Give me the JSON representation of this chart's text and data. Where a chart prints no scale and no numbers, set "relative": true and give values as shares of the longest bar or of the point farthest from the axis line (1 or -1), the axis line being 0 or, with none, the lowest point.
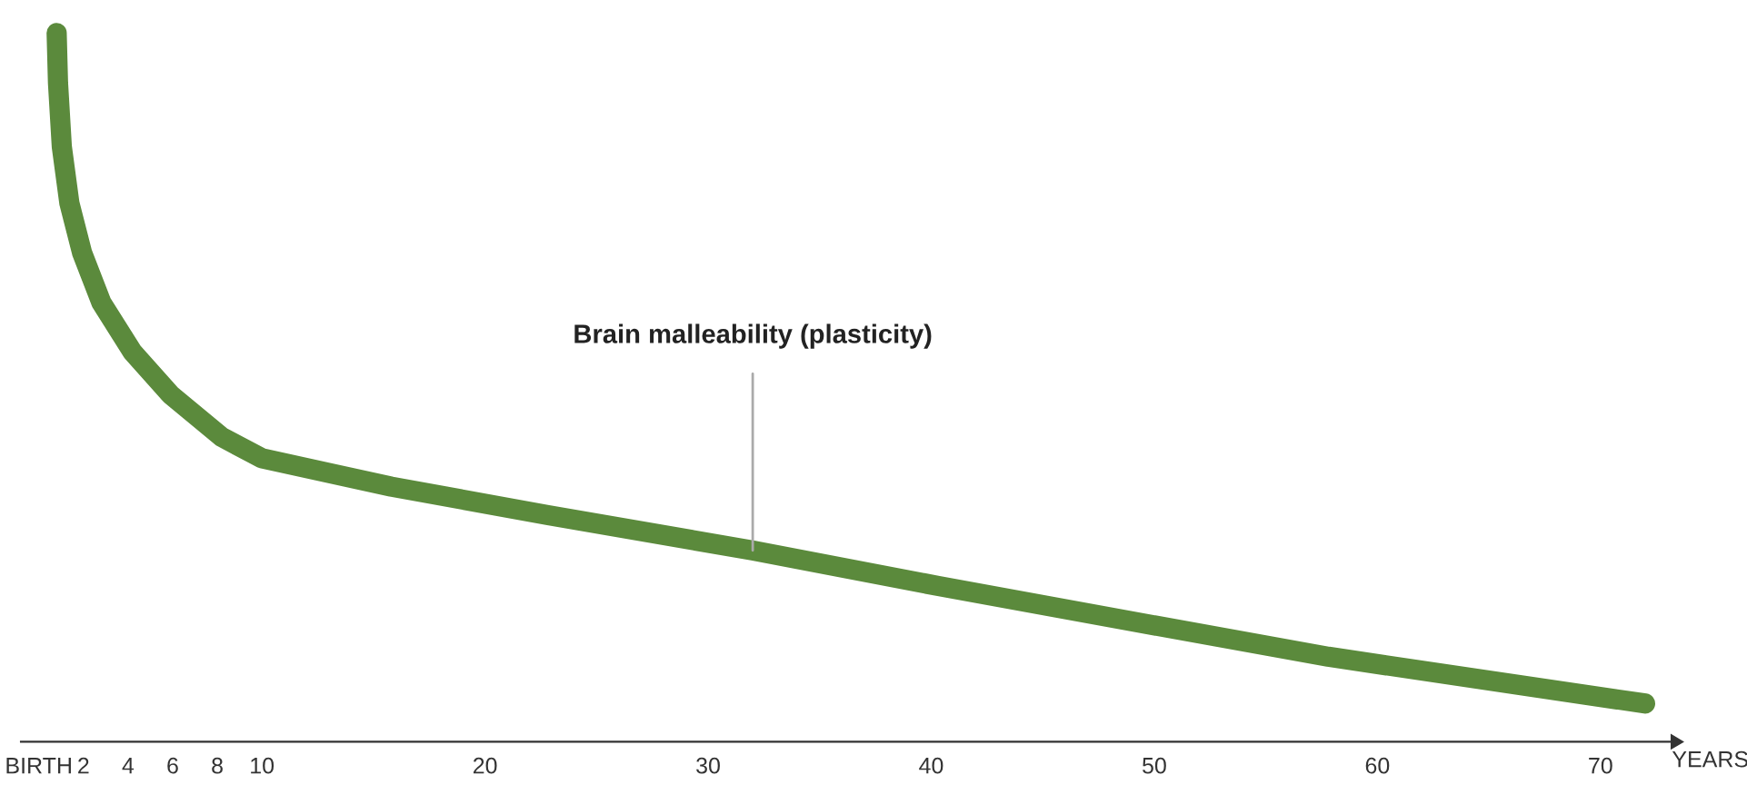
{
  "chart_data": {
    "type": "line",
    "relative": true,
    "xlabel": "YEARS",
    "x": [
      0.8,
      0.86,
      1.03,
      1.37,
      1.94,
      2.8,
      4.2,
      5.9,
      8.2,
      10,
      15.8,
      22.8,
      32,
      40.3,
      49,
      57.8,
      72
    ],
    "series": [
      {
        "color": "#5b8a3c",
        "values": [
          1.0,
          0.93,
          0.84,
          0.76,
          0.69,
          0.62,
          0.55,
          0.49,
          0.43,
          0.4,
          0.36,
          0.32,
          0.27,
          0.22,
          0.17,
          0.12,
          0.054
        ]
      }
    ],
    "xlim": [
      -0.8,
      73.2
    ],
    "xticks": [
      {
        "value": 0,
        "label": "BIRTH"
      },
      2,
      4,
      6,
      8,
      10,
      20,
      30,
      40,
      50,
      60,
      70
    ],
    "annotations": [
      {
        "text": "Brain malleability (plasticity)",
        "x": 32,
        "y": 0.27
      }
    ],
    "grid": false,
    "legend": false,
    "line_style": "solid"
  }
}
